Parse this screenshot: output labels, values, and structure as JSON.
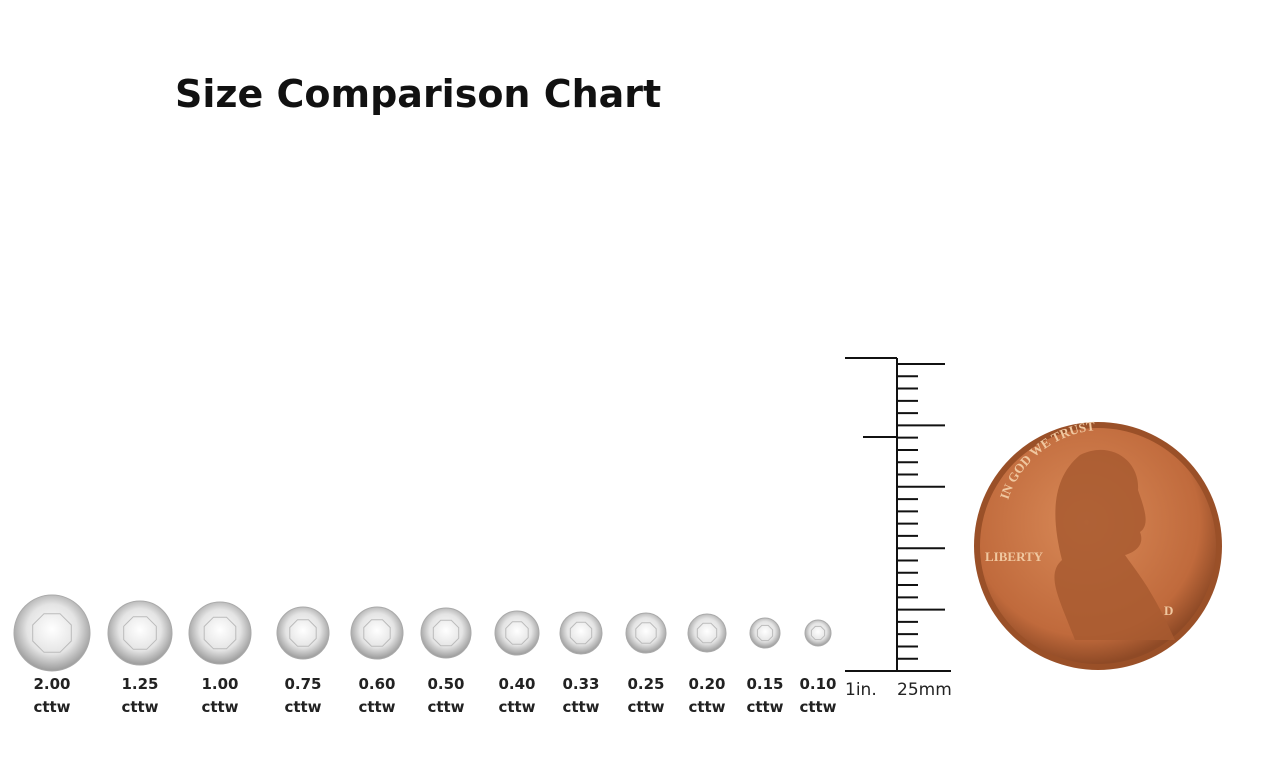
{
  "title": "Size Comparison Chart",
  "items": [
    {
      "carat": "2.00",
      "unit": "cttw"
    },
    {
      "carat": "1.25",
      "unit": "cttw"
    },
    {
      "carat": "1.00",
      "unit": "cttw"
    },
    {
      "carat": "0.75",
      "unit": "cttw"
    },
    {
      "carat": "0.60",
      "unit": "cttw"
    },
    {
      "carat": "0.50",
      "unit": "cttw"
    },
    {
      "carat": "0.40",
      "unit": "cttw"
    },
    {
      "carat": "0.33",
      "unit": "cttw"
    },
    {
      "carat": "0.25",
      "unit": "cttw"
    },
    {
      "carat": "0.20",
      "unit": "cttw"
    },
    {
      "carat": "0.15",
      "unit": "cttw"
    },
    {
      "carat": "0.10",
      "unit": "cttw"
    }
  ],
  "ruler": {
    "inch_label": "1in.",
    "mm_label": "25mm"
  },
  "coin": {
    "motto": "IN GOD WE TRUST",
    "liberty": "LIBERTY",
    "mint": "D"
  }
}
